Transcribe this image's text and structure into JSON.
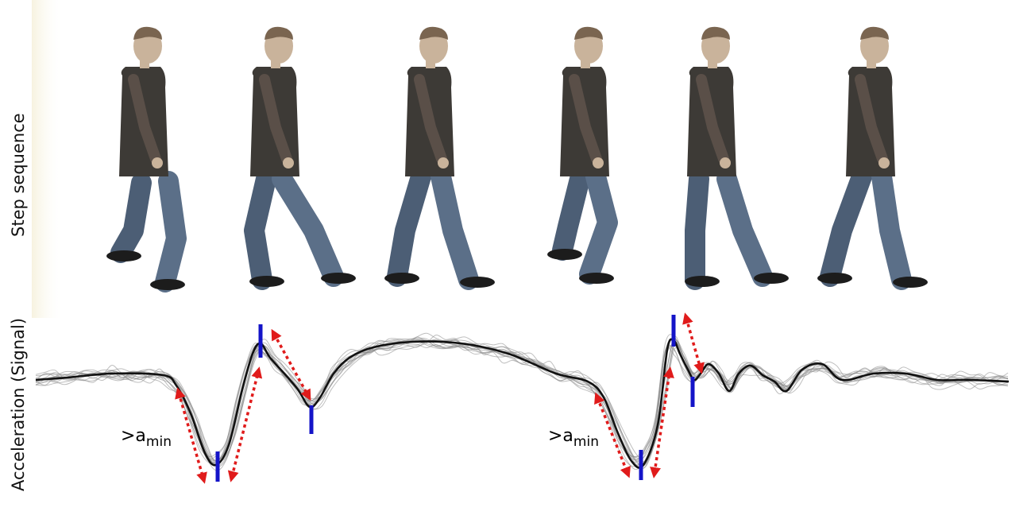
{
  "labels": {
    "step_sequence": "Step sequence",
    "acceleration": "Acceleration (Signal)"
  },
  "annotations": {
    "threshold_prefix": ">a",
    "threshold_sub": "min"
  },
  "colors": {
    "signal": "#111111",
    "signal_noise": "#8a8a8a",
    "marker": "#1414c8",
    "arrow": "#e01b1b",
    "shirt": "#3d3a36",
    "jeans": "#5b6f88",
    "skin": "#c9b39b",
    "hair": "#7a6550"
  },
  "figure_count": 6
}
